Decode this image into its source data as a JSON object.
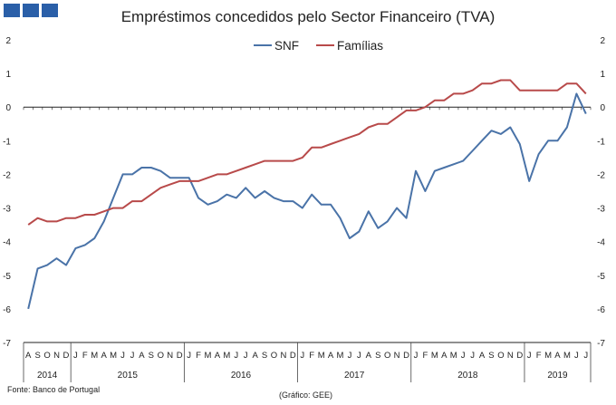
{
  "chart_data": {
    "type": "line",
    "title": "Empréstimos concedidos pelo Sector Financeiro (TVA)",
    "ylim": [
      -7,
      2
    ],
    "yticks": [
      2,
      1,
      0,
      -1,
      -2,
      -3,
      -4,
      -5,
      -6,
      -7
    ],
    "month_labels": [
      "A",
      "S",
      "O",
      "N",
      "D",
      "J",
      "F",
      "M",
      "A",
      "M",
      "J",
      "J",
      "A",
      "S",
      "O",
      "N",
      "D",
      "J",
      "F",
      "M",
      "A",
      "M",
      "J",
      "J",
      "A",
      "S",
      "O",
      "N",
      "D",
      "J",
      "F",
      "M",
      "A",
      "M",
      "J",
      "J",
      "A",
      "S",
      "O",
      "N",
      "D",
      "J",
      "F",
      "M",
      "A",
      "M",
      "J",
      "J",
      "A",
      "S",
      "O",
      "N",
      "D",
      "J",
      "F",
      "M",
      "A",
      "M",
      "J",
      "J"
    ],
    "years": [
      {
        "label": "2014",
        "start": 0,
        "end": 5
      },
      {
        "label": "2015",
        "start": 5,
        "end": 17
      },
      {
        "label": "2016",
        "start": 17,
        "end": 29
      },
      {
        "label": "2017",
        "start": 29,
        "end": 41
      },
      {
        "label": "2018",
        "start": 41,
        "end": 53
      },
      {
        "label": "2019",
        "start": 53,
        "end": 60
      }
    ],
    "series": [
      {
        "name": "SNF",
        "color": "#4a73a8",
        "values": [
          -6.0,
          -4.8,
          -4.7,
          -4.5,
          -4.7,
          -4.2,
          -4.1,
          -3.9,
          -3.4,
          -2.7,
          -2.0,
          -2.0,
          -1.8,
          -1.8,
          -1.9,
          -2.1,
          -2.1,
          -2.1,
          -2.7,
          -2.9,
          -2.8,
          -2.6,
          -2.7,
          -2.4,
          -2.7,
          -2.5,
          -2.7,
          -2.8,
          -2.8,
          -3.0,
          -2.6,
          -2.9,
          -2.9,
          -3.3,
          -3.9,
          -3.7,
          -3.1,
          -3.6,
          -3.4,
          -3.0,
          -3.3,
          -1.9,
          -2.5,
          -1.9,
          -1.8,
          -1.7,
          -1.6,
          -1.3,
          -1.0,
          -0.7,
          -0.8,
          -0.6,
          -1.1,
          -2.2,
          -1.4,
          -1.0,
          -1.0,
          -0.6,
          0.4,
          -0.2
        ]
      },
      {
        "name": "Famílias",
        "color": "#b84a4a",
        "values": [
          -3.5,
          -3.3,
          -3.4,
          -3.4,
          -3.3,
          -3.3,
          -3.2,
          -3.2,
          -3.1,
          -3.0,
          -3.0,
          -2.8,
          -2.8,
          -2.6,
          -2.4,
          -2.3,
          -2.2,
          -2.2,
          -2.2,
          -2.1,
          -2.0,
          -2.0,
          -1.9,
          -1.8,
          -1.7,
          -1.6,
          -1.6,
          -1.6,
          -1.6,
          -1.5,
          -1.2,
          -1.2,
          -1.1,
          -1.0,
          -0.9,
          -0.8,
          -0.6,
          -0.5,
          -0.5,
          -0.3,
          -0.1,
          -0.1,
          0.0,
          0.2,
          0.2,
          0.4,
          0.4,
          0.5,
          0.7,
          0.7,
          0.8,
          0.8,
          0.5,
          0.5,
          0.5,
          0.5,
          0.5,
          0.7,
          0.7,
          0.4
        ]
      }
    ]
  },
  "footer": {
    "source": "Fonte: Banco de Portugal",
    "credit": "(Gráfico: GEE)"
  }
}
